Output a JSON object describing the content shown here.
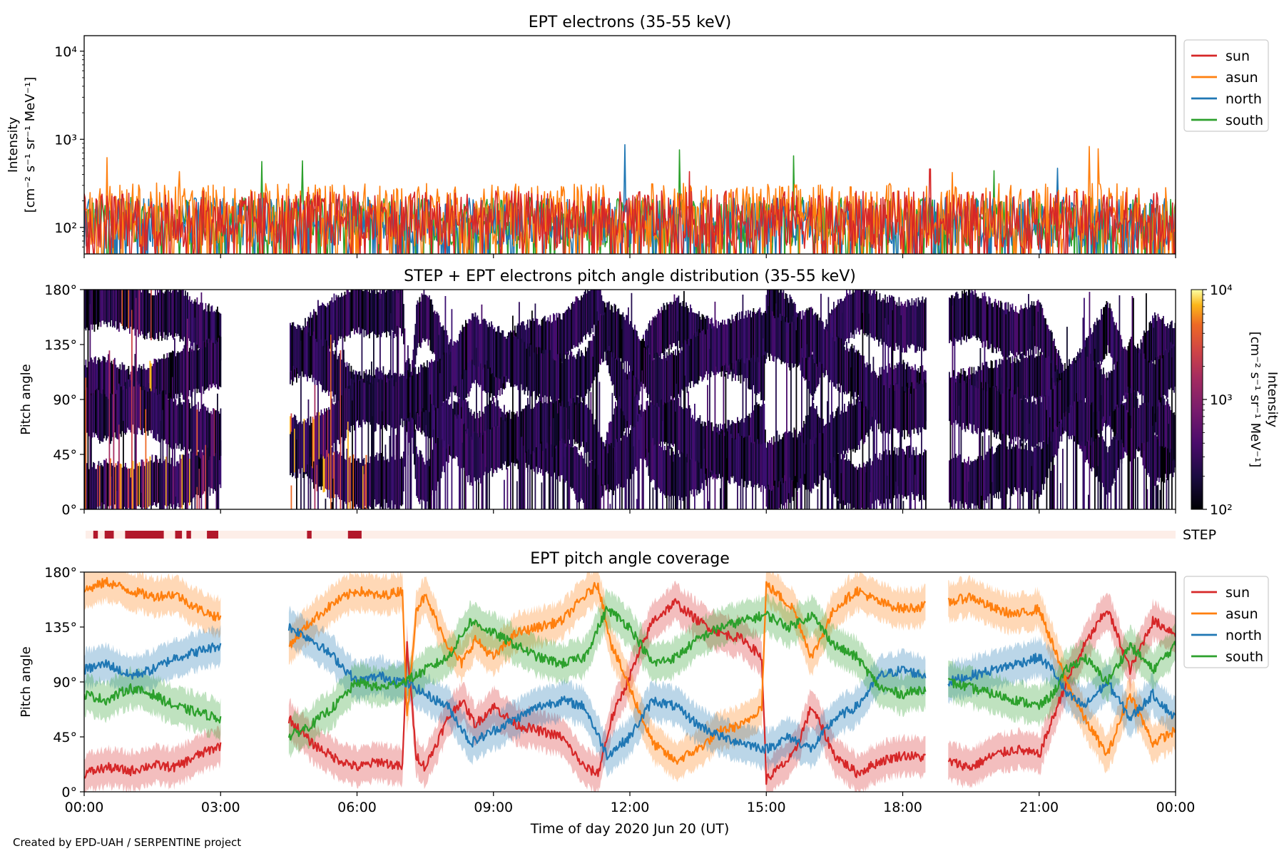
{
  "footer": {
    "credit": "Created by EPD-UAH / SERPENTINE project"
  },
  "colors": {
    "sun": "#d62728",
    "asun": "#ff7f0e",
    "north": "#1f77b4",
    "south": "#2ca02c",
    "step_bar": "#b2182b",
    "step_bg": "#fdeee8"
  },
  "chart_data": [
    {
      "type": "line",
      "title": "EPT electrons (35-55 keV)",
      "ylabel": "Intensity",
      "yunit": "[cm⁻² s⁻¹ sr⁻¹ MeV⁻¹]",
      "yscale": "log",
      "ylim": [
        50,
        15000
      ],
      "yticks": [
        {
          "value": 100,
          "label": "10²"
        },
        {
          "value": 1000,
          "label": "10³"
        },
        {
          "value": 10000,
          "label": "10⁴"
        }
      ],
      "x_hours": [
        0,
        24
      ],
      "legend": {
        "placement": "outside-right"
      },
      "series": [
        {
          "name": "south",
          "color": "#2ca02c",
          "typical": [
            60,
            220
          ],
          "peaks": [
            [
              3.9,
              560
            ],
            [
              4.8,
              570
            ],
            [
              13.1,
              760
            ],
            [
              15.6,
              650
            ],
            [
              20.0,
              440
            ]
          ]
        },
        {
          "name": "north",
          "color": "#1f77b4",
          "typical": [
            60,
            220
          ],
          "peaks": [
            [
              11.9,
              870
            ],
            [
              21.4,
              470
            ]
          ]
        },
        {
          "name": "asun",
          "color": "#ff7f0e",
          "typical": [
            60,
            320
          ],
          "peaks": [
            [
              0.5,
              620
            ],
            [
              2.1,
              430
            ],
            [
              22.1,
              830
            ],
            [
              22.3,
              780
            ],
            [
              19.1,
              420
            ]
          ]
        },
        {
          "name": "sun",
          "color": "#d62728",
          "typical": [
            55,
            260
          ],
          "peaks": [
            [
              13.3,
              430
            ],
            [
              18.6,
              460
            ]
          ]
        }
      ]
    },
    {
      "type": "heatmap",
      "title": "STEP + EPT electrons pitch angle distribution (35-55 keV)",
      "ylabel": "Pitch angle",
      "yticks": [
        "0°",
        "45°",
        "90°",
        "135°",
        "180°"
      ],
      "ylim": [
        0,
        180
      ],
      "colorbar": {
        "label": "Intensity",
        "unit": "[cm⁻² s⁻¹ sr⁻¹ MeV⁻¹]",
        "scale": "log",
        "range": [
          100,
          10000
        ],
        "ticks": [
          {
            "value": 100,
            "label": "10²"
          },
          {
            "value": 1000,
            "label": "10³"
          },
          {
            "value": 10000,
            "label": "10⁴"
          }
        ],
        "colormap": "inferno"
      },
      "data_gaps_hours": [
        [
          3.0,
          4.5
        ],
        [
          18.5,
          19.0
        ]
      ],
      "step_active_hours": [
        [
          0.8,
          1.5
        ],
        [
          3.8,
          4.0
        ]
      ]
    },
    {
      "type": "bar",
      "label": "STEP",
      "active_hours": [
        [
          0.2,
          0.3
        ],
        [
          0.45,
          0.65
        ],
        [
          0.9,
          1.75
        ],
        [
          2.0,
          2.15
        ],
        [
          2.25,
          2.35
        ],
        [
          2.7,
          2.95
        ],
        [
          4.9,
          5.0
        ],
        [
          5.8,
          6.1
        ]
      ]
    },
    {
      "type": "line",
      "title": "EPT pitch angle coverage",
      "ylabel": "Pitch angle",
      "ylim": [
        0,
        180
      ],
      "yticks": [
        "0°",
        "45°",
        "90°",
        "135°",
        "180°"
      ],
      "xlabel": "Time of day 2020 Jun 20 (UT)",
      "xticks": [
        "00:00",
        "03:00",
        "06:00",
        "09:00",
        "12:00",
        "15:00",
        "18:00",
        "21:00",
        "00:00"
      ],
      "x_hours": [
        0,
        24
      ],
      "gaps_hours": [
        [
          3.0,
          4.5
        ],
        [
          18.5,
          19.0
        ]
      ],
      "band_halfwidth_deg": 15,
      "legend": {
        "placement": "outside-right"
      },
      "series": [
        {
          "name": "sun",
          "color": "#d62728",
          "points": [
            [
              0,
              15
            ],
            [
              0.5,
              20
            ],
            [
              1,
              17
            ],
            [
              1.5,
              22
            ],
            [
              2,
              20
            ],
            [
              2.5,
              30
            ],
            [
              3,
              38
            ],
            [
              4.5,
              60
            ],
            [
              5,
              40
            ],
            [
              5.5,
              28
            ],
            [
              6,
              20
            ],
            [
              6.5,
              25
            ],
            [
              7,
              20
            ],
            [
              7.1,
              120
            ],
            [
              7.3,
              30
            ],
            [
              7.5,
              20
            ],
            [
              8,
              60
            ],
            [
              8.3,
              75
            ],
            [
              8.6,
              55
            ],
            [
              9,
              70
            ],
            [
              9.5,
              55
            ],
            [
              10,
              50
            ],
            [
              10.5,
              45
            ],
            [
              11,
              20
            ],
            [
              11.3,
              15
            ],
            [
              11.6,
              60
            ],
            [
              12,
              95
            ],
            [
              12.5,
              140
            ],
            [
              13,
              155
            ],
            [
              13.5,
              140
            ],
            [
              14,
              130
            ],
            [
              14.5,
              125
            ],
            [
              14.9,
              110
            ],
            [
              15,
              10
            ],
            [
              15.3,
              20
            ],
            [
              15.6,
              30
            ],
            [
              16,
              70
            ],
            [
              16.5,
              30
            ],
            [
              17,
              15
            ],
            [
              17.5,
              25
            ],
            [
              18,
              30
            ],
            [
              18.5,
              28
            ],
            [
              19,
              25
            ],
            [
              19.5,
              20
            ],
            [
              20,
              30
            ],
            [
              20.5,
              35
            ],
            [
              21,
              30
            ],
            [
              21.3,
              60
            ],
            [
              21.6,
              90
            ],
            [
              22,
              120
            ],
            [
              22.5,
              150
            ],
            [
              23,
              100
            ],
            [
              23.5,
              140
            ],
            [
              24,
              130
            ]
          ]
        },
        {
          "name": "asun",
          "color": "#ff7f0e",
          "points": [
            [
              0,
              165
            ],
            [
              0.5,
              172
            ],
            [
              1,
              165
            ],
            [
              1.5,
              160
            ],
            [
              2,
              162
            ],
            [
              2.5,
              150
            ],
            [
              3,
              142
            ],
            [
              4.5,
              120
            ],
            [
              5,
              140
            ],
            [
              5.5,
              155
            ],
            [
              6,
              165
            ],
            [
              6.5,
              160
            ],
            [
              7,
              165
            ],
            [
              7.1,
              60
            ],
            [
              7.3,
              150
            ],
            [
              7.5,
              160
            ],
            [
              8,
              120
            ],
            [
              8.3,
              105
            ],
            [
              8.6,
              125
            ],
            [
              9,
              110
            ],
            [
              9.5,
              130
            ],
            [
              10,
              135
            ],
            [
              10.5,
              140
            ],
            [
              11,
              160
            ],
            [
              11.3,
              170
            ],
            [
              11.6,
              120
            ],
            [
              12,
              85
            ],
            [
              12.5,
              40
            ],
            [
              13,
              25
            ],
            [
              13.5,
              35
            ],
            [
              14,
              50
            ],
            [
              14.5,
              55
            ],
            [
              14.9,
              70
            ],
            [
              15,
              170
            ],
            [
              15.3,
              160
            ],
            [
              15.6,
              150
            ],
            [
              16,
              110
            ],
            [
              16.5,
              150
            ],
            [
              17,
              165
            ],
            [
              17.5,
              155
            ],
            [
              18,
              150
            ],
            [
              18.5,
              152
            ],
            [
              19,
              155
            ],
            [
              19.5,
              160
            ],
            [
              20,
              150
            ],
            [
              20.5,
              145
            ],
            [
              21,
              150
            ],
            [
              21.3,
              120
            ],
            [
              21.6,
              90
            ],
            [
              22,
              60
            ],
            [
              22.5,
              30
            ],
            [
              23,
              80
            ],
            [
              23.5,
              40
            ],
            [
              24,
              50
            ]
          ]
        },
        {
          "name": "north",
          "color": "#1f77b4",
          "points": [
            [
              0,
              100
            ],
            [
              0.5,
              105
            ],
            [
              1,
              95
            ],
            [
              1.5,
              100
            ],
            [
              2,
              110
            ],
            [
              2.5,
              115
            ],
            [
              3,
              120
            ],
            [
              4.5,
              135
            ],
            [
              5,
              125
            ],
            [
              5.5,
              110
            ],
            [
              6,
              90
            ],
            [
              6.5,
              95
            ],
            [
              7,
              90
            ],
            [
              7.3,
              85
            ],
            [
              7.5,
              80
            ],
            [
              8,
              70
            ],
            [
              8.5,
              40
            ],
            [
              9,
              50
            ],
            [
              9.5,
              60
            ],
            [
              10,
              70
            ],
            [
              10.5,
              75
            ],
            [
              11,
              70
            ],
            [
              11.5,
              30
            ],
            [
              12,
              45
            ],
            [
              12.5,
              75
            ],
            [
              13,
              70
            ],
            [
              13.5,
              55
            ],
            [
              14,
              45
            ],
            [
              14.5,
              40
            ],
            [
              15,
              35
            ],
            [
              15.5,
              45
            ],
            [
              16,
              35
            ],
            [
              16.5,
              60
            ],
            [
              17,
              70
            ],
            [
              17.5,
              95
            ],
            [
              18,
              100
            ],
            [
              18.5,
              95
            ],
            [
              19,
              90
            ],
            [
              19.5,
              95
            ],
            [
              20,
              100
            ],
            [
              20.5,
              105
            ],
            [
              21,
              110
            ],
            [
              21.3,
              100
            ],
            [
              21.6,
              80
            ],
            [
              22,
              70
            ],
            [
              22.5,
              90
            ],
            [
              23,
              60
            ],
            [
              23.5,
              80
            ],
            [
              24,
              60
            ]
          ]
        },
        {
          "name": "south",
          "color": "#2ca02c",
          "points": [
            [
              0,
              80
            ],
            [
              0.5,
              75
            ],
            [
              1,
              85
            ],
            [
              1.5,
              80
            ],
            [
              2,
              70
            ],
            [
              2.5,
              65
            ],
            [
              3,
              60
            ],
            [
              4.5,
              45
            ],
            [
              5,
              55
            ],
            [
              5.5,
              70
            ],
            [
              6,
              90
            ],
            [
              6.5,
              85
            ],
            [
              7,
              90
            ],
            [
              7.3,
              95
            ],
            [
              7.5,
              100
            ],
            [
              8,
              110
            ],
            [
              8.5,
              140
            ],
            [
              9,
              130
            ],
            [
              9.5,
              120
            ],
            [
              10,
              110
            ],
            [
              10.5,
              105
            ],
            [
              11,
              110
            ],
            [
              11.5,
              150
            ],
            [
              12,
              135
            ],
            [
              12.5,
              105
            ],
            [
              13,
              110
            ],
            [
              13.5,
              125
            ],
            [
              14,
              135
            ],
            [
              14.5,
              140
            ],
            [
              15,
              145
            ],
            [
              15.5,
              135
            ],
            [
              16,
              145
            ],
            [
              16.5,
              120
            ],
            [
              17,
              110
            ],
            [
              17.5,
              85
            ],
            [
              18,
              80
            ],
            [
              18.5,
              85
            ],
            [
              19,
              90
            ],
            [
              19.5,
              85
            ],
            [
              20,
              80
            ],
            [
              20.5,
              75
            ],
            [
              21,
              70
            ],
            [
              21.3,
              80
            ],
            [
              21.6,
              100
            ],
            [
              22,
              110
            ],
            [
              22.5,
              90
            ],
            [
              23,
              120
            ],
            [
              23.5,
              100
            ],
            [
              24,
              120
            ]
          ]
        }
      ]
    }
  ]
}
